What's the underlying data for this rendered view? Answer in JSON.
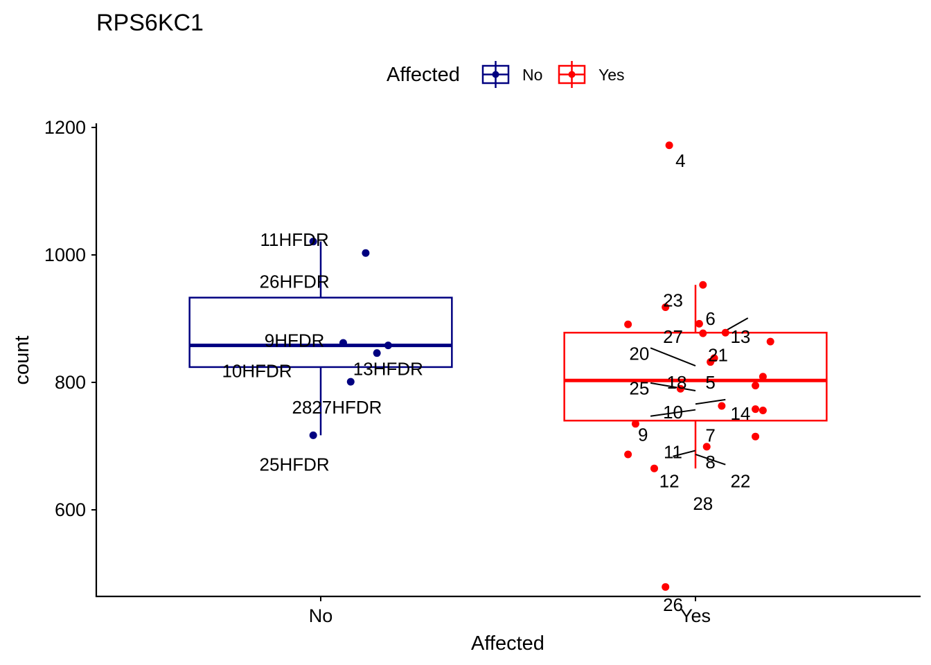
{
  "chart_data": {
    "type": "boxplot",
    "title": "RPS6KC1",
    "xlabel": "Affected",
    "ylabel": "count",
    "categories": [
      "No",
      "Yes"
    ],
    "ylim": [
      455,
      1205
    ],
    "yticks": [
      600,
      800,
      1000,
      1200
    ],
    "grid": false,
    "legend": {
      "title": "Affected",
      "position": "top",
      "entries": [
        {
          "label": "No",
          "color": "#000080"
        },
        {
          "label": "Yes",
          "color": "#ff0000"
        }
      ]
    },
    "boxes": [
      {
        "group": "No",
        "color": "#000080",
        "lower_whisker": 717,
        "q1": 824,
        "median": 858,
        "q3": 933,
        "upper_whisker": 1021
      },
      {
        "group": "Yes",
        "color": "#ff0000",
        "lower_whisker": 665,
        "q1": 740,
        "median": 803,
        "q3": 878,
        "upper_whisker": 953
      }
    ],
    "points": [
      {
        "group": "No",
        "jitter": -0.02,
        "y": 1021,
        "label": "11HFDR"
      },
      {
        "group": "No",
        "jitter": 0.12,
        "y": 1003,
        "label": "26HFDR"
      },
      {
        "group": "No",
        "jitter": 0.06,
        "y": 862,
        "label": "9HFDR"
      },
      {
        "group": "No",
        "jitter": 0.18,
        "y": 858,
        "label": ""
      },
      {
        "group": "No",
        "jitter": 0.15,
        "y": 846,
        "label": "13HFDR"
      },
      {
        "group": "No",
        "jitter": 0.08,
        "y": 801,
        "label": "27HFDR"
      },
      {
        "group": "No",
        "jitter": -0.02,
        "y": 717,
        "label": "25HFDR"
      },
      {
        "group": "Yes",
        "jitter": -0.07,
        "y": 1172,
        "label": "4"
      },
      {
        "group": "Yes",
        "jitter": 0.02,
        "y": 953,
        "label": "6"
      },
      {
        "group": "Yes",
        "jitter": -0.08,
        "y": 918,
        "label": "23"
      },
      {
        "group": "Yes",
        "jitter": 0.01,
        "y": 892,
        "label": "27"
      },
      {
        "group": "Yes",
        "jitter": -0.18,
        "y": 891,
        "label": "20"
      },
      {
        "group": "Yes",
        "jitter": 0.02,
        "y": 877,
        "label": "21"
      },
      {
        "group": "Yes",
        "jitter": 0.08,
        "y": 878,
        "label": "13"
      },
      {
        "group": "Yes",
        "jitter": 0.2,
        "y": 864,
        "label": ""
      },
      {
        "group": "Yes",
        "jitter": 0.05,
        "y": 838,
        "label": "5"
      },
      {
        "group": "Yes",
        "jitter": 0.04,
        "y": 832,
        "label": "18"
      },
      {
        "group": "Yes",
        "jitter": 0.18,
        "y": 809,
        "label": ""
      },
      {
        "group": "Yes",
        "jitter": 0.16,
        "y": 795,
        "label": "14"
      },
      {
        "group": "Yes",
        "jitter": -0.04,
        "y": 790,
        "label": "25"
      },
      {
        "group": "Yes",
        "jitter": 0.07,
        "y": 763,
        "label": "10"
      },
      {
        "group": "Yes",
        "jitter": 0.16,
        "y": 758,
        "label": ""
      },
      {
        "group": "Yes",
        "jitter": 0.18,
        "y": 756,
        "label": ""
      },
      {
        "group": "Yes",
        "jitter": -0.16,
        "y": 735,
        "label": "9"
      },
      {
        "group": "Yes",
        "jitter": 0.16,
        "y": 715,
        "label": "7"
      },
      {
        "group": "Yes",
        "jitter": 0.03,
        "y": 699,
        "label": "8"
      },
      {
        "group": "Yes",
        "jitter": -0.18,
        "y": 687,
        "label": "22"
      },
      {
        "group": "Yes",
        "jitter": -0.11,
        "y": 665,
        "label": "12"
      },
      {
        "group": "Yes",
        "jitter": -0.08,
        "y": 479,
        "label": "26"
      }
    ],
    "text_labels": [
      {
        "group": "No",
        "dx": -0.07,
        "y": 1024,
        "text": "11HFDR"
      },
      {
        "group": "No",
        "dx": -0.07,
        "y": 958,
        "text": "26HFDR"
      },
      {
        "group": "No",
        "dx": -0.07,
        "y": 866,
        "text": "9HFDR"
      },
      {
        "group": "No",
        "dx": -0.17,
        "y": 818,
        "text": "10HFDR"
      },
      {
        "group": "No",
        "dx": 0.18,
        "y": 821,
        "text": "13HFDR"
      },
      {
        "group": "No",
        "dx": -0.05,
        "y": 761,
        "text": "28"
      },
      {
        "group": "No",
        "dx": 0.07,
        "y": 761,
        "text": "27HFDR"
      },
      {
        "group": "No",
        "dx": -0.07,
        "y": 671,
        "text": "25HFDR"
      },
      {
        "group": "Yes",
        "dx": -0.04,
        "y": 1148,
        "text": "4"
      },
      {
        "group": "Yes",
        "dx": -0.06,
        "y": 929,
        "text": "23"
      },
      {
        "group": "Yes",
        "dx": 0.04,
        "y": 900,
        "text": "6"
      },
      {
        "group": "Yes",
        "dx": -0.06,
        "y": 872,
        "text": "27"
      },
      {
        "group": "Yes",
        "dx": 0.12,
        "y": 872,
        "text": "13"
      },
      {
        "group": "Yes",
        "dx": -0.15,
        "y": 845,
        "text": "20"
      },
      {
        "group": "Yes",
        "dx": 0.06,
        "y": 843,
        "text": "21"
      },
      {
        "group": "Yes",
        "dx": -0.05,
        "y": 800,
        "text": "18"
      },
      {
        "group": "Yes",
        "dx": 0.04,
        "y": 800,
        "text": "5"
      },
      {
        "group": "Yes",
        "dx": -0.15,
        "y": 791,
        "text": "25"
      },
      {
        "group": "Yes",
        "dx": -0.06,
        "y": 753,
        "text": "10"
      },
      {
        "group": "Yes",
        "dx": 0.12,
        "y": 751,
        "text": "14"
      },
      {
        "group": "Yes",
        "dx": -0.14,
        "y": 718,
        "text": "9"
      },
      {
        "group": "Yes",
        "dx": 0.04,
        "y": 717,
        "text": "7"
      },
      {
        "group": "Yes",
        "dx": -0.06,
        "y": 691,
        "text": "11"
      },
      {
        "group": "Yes",
        "dx": 0.04,
        "y": 675,
        "text": "8"
      },
      {
        "group": "Yes",
        "dx": -0.07,
        "y": 645,
        "text": "12"
      },
      {
        "group": "Yes",
        "dx": 0.12,
        "y": 645,
        "text": "22"
      },
      {
        "group": "Yes",
        "dx": 0.02,
        "y": 610,
        "text": "28"
      },
      {
        "group": "Yes",
        "dx": -0.06,
        "y": 451,
        "text": "26"
      }
    ],
    "connectors": [
      {
        "group": "Yes",
        "x1": 0.08,
        "y1": 881,
        "x2": 0.14,
        "y2": 901
      },
      {
        "group": "Yes",
        "x1": -0.12,
        "y1": 854,
        "x2": 0.0,
        "y2": 826
      },
      {
        "group": "Yes",
        "x1": -0.12,
        "y1": 799,
        "x2": 0.0,
        "y2": 787
      },
      {
        "group": "Yes",
        "x1": 0.0,
        "y1": 766,
        "x2": 0.08,
        "y2": 773
      },
      {
        "group": "Yes",
        "x1": -0.12,
        "y1": 747,
        "x2": 0.0,
        "y2": 757
      },
      {
        "group": "Yes",
        "x1": -0.06,
        "y1": 684,
        "x2": 0.0,
        "y2": 693
      },
      {
        "group": "Yes",
        "x1": 0.0,
        "y1": 687,
        "x2": 0.08,
        "y2": 671
      }
    ]
  }
}
